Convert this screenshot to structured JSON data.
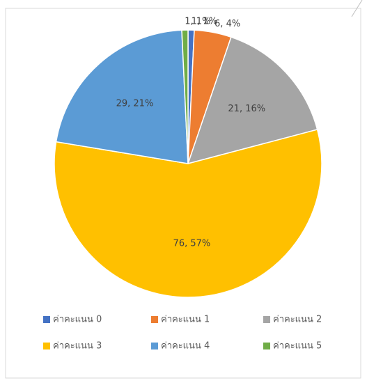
{
  "chart_data": {
    "type": "pie",
    "categories": [
      "ค่าคะแนน 0",
      "ค่าคะแนน 1",
      "ค่าคะแนน 2",
      "ค่าคะแนน 3",
      "ค่าคะแนน 4",
      "ค่าคะแนน 5"
    ],
    "values": [
      1,
      6,
      21,
      76,
      29,
      1
    ],
    "value_labels": [
      "1, 1%",
      "6, 4%",
      "21, 16%",
      "76, 57%",
      "29, 21%",
      "1, 1%"
    ],
    "colors": [
      "#4472c4",
      "#ed7d31",
      "#a5a5a5",
      "#ffc000",
      "#5b9bd5",
      "#70ad47"
    ],
    "legend": "bottom"
  }
}
